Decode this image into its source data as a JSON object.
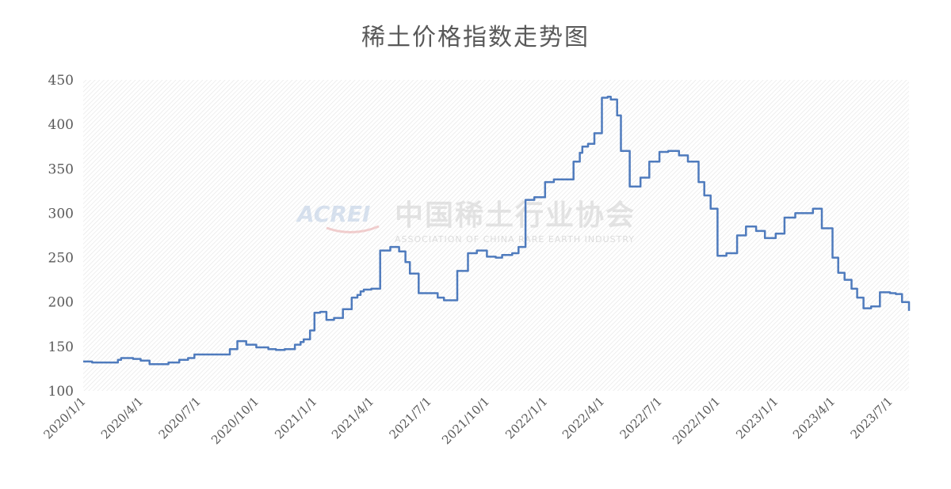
{
  "chart_data": {
    "type": "line",
    "title": "稀土价格指数走势图",
    "xlabel": "",
    "ylabel": "",
    "ylim": [
      100,
      450
    ],
    "yticks": [
      100,
      150,
      200,
      250,
      300,
      350,
      400,
      450
    ],
    "xlim": [
      "2020-01-01",
      "2023-07-31"
    ],
    "xticks": [
      "2020/1/1",
      "2020/4/1",
      "2020/7/1",
      "2020/10/1",
      "2021/1/1",
      "2021/4/1",
      "2021/7/1",
      "2021/10/1",
      "2022/1/1",
      "2022/4/1",
      "2022/7/1",
      "2022/10/1",
      "2023/1/1",
      "2023/4/1",
      "2023/7/1"
    ],
    "grid": false,
    "legend": "none",
    "series": [
      {
        "color": "#4f7bbd",
        "x": [
          "2020-01-01",
          "2020-01-15",
          "2020-02-01",
          "2020-02-10",
          "2020-02-25",
          "2020-03-01",
          "2020-03-10",
          "2020-03-20",
          "2020-04-01",
          "2020-04-15",
          "2020-05-01",
          "2020-05-15",
          "2020-06-01",
          "2020-06-15",
          "2020-06-25",
          "2020-07-01",
          "2020-07-15",
          "2020-08-01",
          "2020-08-10",
          "2020-08-20",
          "2020-09-01",
          "2020-09-15",
          "2020-10-01",
          "2020-10-20",
          "2020-11-01",
          "2020-11-15",
          "2020-12-01",
          "2020-12-10",
          "2020-12-15",
          "2020-12-25",
          "2021-01-01",
          "2021-01-10",
          "2021-01-20",
          "2021-02-01",
          "2021-02-15",
          "2021-03-01",
          "2021-03-10",
          "2021-03-15",
          "2021-03-20",
          "2021-04-01",
          "2021-04-15",
          "2021-05-01",
          "2021-05-15",
          "2021-05-25",
          "2021-06-01",
          "2021-06-15",
          "2021-07-01",
          "2021-07-15",
          "2021-07-25",
          "2021-08-01",
          "2021-08-15",
          "2021-09-01",
          "2021-09-15",
          "2021-10-01",
          "2021-10-15",
          "2021-10-25",
          "2021-11-01",
          "2021-11-10",
          "2021-11-20",
          "2021-12-01",
          "2021-12-15",
          "2022-01-01",
          "2022-01-15",
          "2022-02-01",
          "2022-02-15",
          "2022-02-25",
          "2022-03-01",
          "2022-03-10",
          "2022-03-20",
          "2022-04-01",
          "2022-04-10",
          "2022-04-15",
          "2022-04-25",
          "2022-05-01",
          "2022-05-15",
          "2022-06-01",
          "2022-06-15",
          "2022-07-01",
          "2022-07-15",
          "2022-08-01",
          "2022-08-15",
          "2022-09-01",
          "2022-09-10",
          "2022-09-20",
          "2022-10-01",
          "2022-10-15",
          "2022-11-01",
          "2022-11-15",
          "2022-12-01",
          "2022-12-15",
          "2023-01-01",
          "2023-01-15",
          "2023-02-01",
          "2023-02-10",
          "2023-02-20",
          "2023-03-01",
          "2023-03-15",
          "2023-04-01",
          "2023-04-10",
          "2023-04-20",
          "2023-05-01",
          "2023-05-10",
          "2023-05-20",
          "2023-06-01",
          "2023-06-15",
          "2023-07-01",
          "2023-07-10",
          "2023-07-20",
          "2023-07-31"
        ],
        "y": [
          133,
          132,
          132,
          132,
          135,
          137,
          137,
          136,
          134,
          130,
          130,
          132,
          135,
          137,
          141,
          141,
          141,
          141,
          141,
          147,
          156,
          152,
          149,
          147,
          146,
          147,
          152,
          155,
          158,
          168,
          188,
          189,
          180,
          182,
          192,
          205,
          208,
          212,
          214,
          215,
          258,
          262,
          257,
          245,
          232,
          210,
          210,
          205,
          202,
          202,
          235,
          255,
          258,
          251,
          250,
          253,
          253,
          255,
          262,
          315,
          318,
          335,
          338,
          338,
          358,
          368,
          375,
          378,
          390,
          430,
          431,
          428,
          410,
          370,
          330,
          340,
          358,
          369,
          370,
          365,
          358,
          335,
          320,
          305,
          252,
          255,
          275,
          285,
          280,
          272,
          277,
          295,
          300,
          300,
          300,
          305,
          283,
          250,
          233,
          225,
          215,
          205,
          193,
          195,
          211,
          210,
          209,
          200,
          190
        ]
      }
    ]
  },
  "watermark": {
    "logo_text": "ACREI",
    "cn_text": "中国稀土行业协会",
    "en_text": "ASSOCIATION OF CHINA RARE EARTH INDUSTRY"
  }
}
